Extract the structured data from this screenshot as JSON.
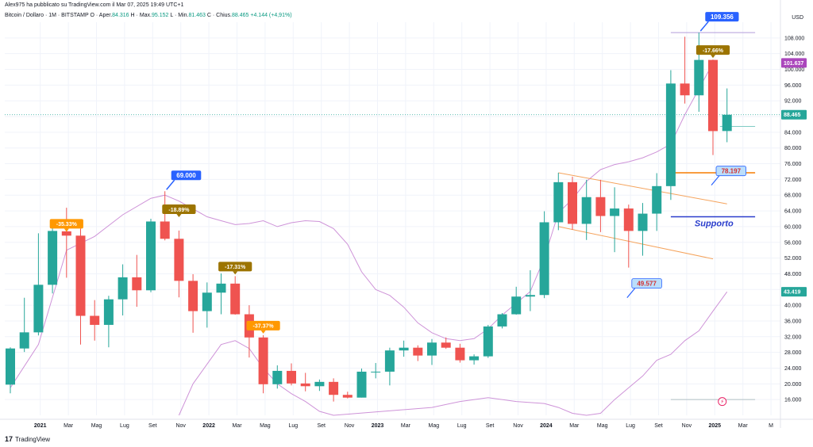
{
  "header": {
    "text": "Alex975 ha pubblicato su TradingView.com il Mar 07, 2025 19:49 UTC+1"
  },
  "ohlc_line": {
    "symbol": "Bitcoin / Dollaro · 1M · BITSTAMP",
    "status": "O",
    "open_label": "Aper.",
    "open": "84.316",
    "high_label": "H",
    "max_label": "Max.",
    "high": "95.152",
    "low_label": "L",
    "min_label": "Min.",
    "low": "81.463",
    "close_label": "C",
    "chius_label": "Chius.",
    "close": "88.465",
    "change": "+4.144 (+4,91%)"
  },
  "currency": "USD",
  "logo_text": "TradingView",
  "colors": {
    "up": "#26a69a",
    "down": "#ef5350",
    "envelope": "#ce93d8",
    "channel": "#f5a35c",
    "support": "#2a3dcc",
    "label_blue": "#2962ff",
    "label_orange": "#ff9800",
    "label_olive": "#9c7400",
    "axis_text": "#131722",
    "price_tag": "#26a69a",
    "purple_tag": "#ab47bc"
  },
  "chart_data": {
    "type": "candlestick",
    "y_axis": {
      "min": 12000,
      "max": 112000,
      "ticks": [
        "16.000",
        "20.000",
        "24.000",
        "28.000",
        "32.000",
        "36.000",
        "40.000",
        "44.000",
        "48.000",
        "52.000",
        "56.000",
        "60.000",
        "64.000",
        "68.000",
        "72.000",
        "76.000",
        "80.000",
        "84.000",
        "88.000",
        "92.000",
        "96.000",
        "100.000",
        "104.000",
        "108.000"
      ],
      "tick_values": [
        16000,
        20000,
        24000,
        28000,
        32000,
        36000,
        40000,
        44000,
        48000,
        52000,
        56000,
        60000,
        64000,
        68000,
        72000,
        76000,
        80000,
        84000,
        88000,
        92000,
        96000,
        100000,
        104000,
        108000
      ]
    },
    "x_axis": {
      "labels": [
        {
          "i": 1,
          "t": "2021"
        },
        {
          "i": 3,
          "t": "Mar"
        },
        {
          "i": 5,
          "t": "Mag"
        },
        {
          "i": 7,
          "t": "Lug"
        },
        {
          "i": 9,
          "t": "Set"
        },
        {
          "i": 11,
          "t": "Nov"
        },
        {
          "i": 13,
          "t": "2022"
        },
        {
          "i": 15,
          "t": "Mar"
        },
        {
          "i": 17,
          "t": "Mag"
        },
        {
          "i": 19,
          "t": "Lug"
        },
        {
          "i": 21,
          "t": "Set"
        },
        {
          "i": 23,
          "t": "Nov"
        },
        {
          "i": 25,
          "t": "2023"
        },
        {
          "i": 27,
          "t": "Mar"
        },
        {
          "i": 29,
          "t": "Mag"
        },
        {
          "i": 31,
          "t": "Lug"
        },
        {
          "i": 33,
          "t": "Set"
        },
        {
          "i": 35,
          "t": "Nov"
        },
        {
          "i": 37,
          "t": "2024"
        },
        {
          "i": 39,
          "t": "Mar"
        },
        {
          "i": 41,
          "t": "Mag"
        },
        {
          "i": 43,
          "t": "Lug"
        },
        {
          "i": 45,
          "t": "Set"
        },
        {
          "i": 47,
          "t": "Nov"
        },
        {
          "i": 49,
          "t": "2025"
        },
        {
          "i": 51,
          "t": "Mar"
        },
        {
          "i": 53,
          "t": "M"
        }
      ]
    },
    "candles": [
      {
        "o": 19800,
        "h": 29300,
        "l": 17600,
        "c": 29000
      },
      {
        "o": 29000,
        "h": 41900,
        "l": 28100,
        "c": 33100
      },
      {
        "o": 33100,
        "h": 58300,
        "l": 32300,
        "c": 45200
      },
      {
        "o": 45200,
        "h": 61700,
        "l": 43000,
        "c": 58900
      },
      {
        "o": 58800,
        "h": 64800,
        "l": 47000,
        "c": 57700
      },
      {
        "o": 57700,
        "h": 59500,
        "l": 30000,
        "c": 37300
      },
      {
        "o": 37300,
        "h": 41300,
        "l": 31000,
        "c": 35000
      },
      {
        "o": 35000,
        "h": 42400,
        "l": 29300,
        "c": 41500
      },
      {
        "o": 41500,
        "h": 50400,
        "l": 37400,
        "c": 47100
      },
      {
        "o": 47100,
        "h": 52800,
        "l": 39600,
        "c": 43800
      },
      {
        "o": 43800,
        "h": 62000,
        "l": 43300,
        "c": 61300
      },
      {
        "o": 61300,
        "h": 69000,
        "l": 56500,
        "c": 56900
      },
      {
        "o": 56900,
        "h": 59000,
        "l": 42000,
        "c": 46200
      },
      {
        "o": 46200,
        "h": 47900,
        "l": 33000,
        "c": 38500
      },
      {
        "o": 38500,
        "h": 45800,
        "l": 34300,
        "c": 43200
      },
      {
        "o": 43200,
        "h": 48100,
        "l": 37700,
        "c": 45500
      },
      {
        "o": 45500,
        "h": 47400,
        "l": 37600,
        "c": 37700
      },
      {
        "o": 37700,
        "h": 40000,
        "l": 26700,
        "c": 31800
      },
      {
        "o": 31800,
        "h": 32400,
        "l": 17600,
        "c": 19900
      },
      {
        "o": 19900,
        "h": 24700,
        "l": 18800,
        "c": 23300
      },
      {
        "o": 23300,
        "h": 25200,
        "l": 19600,
        "c": 20100
      },
      {
        "o": 20100,
        "h": 22800,
        "l": 18100,
        "c": 19400
      },
      {
        "o": 19400,
        "h": 21100,
        "l": 18200,
        "c": 20500
      },
      {
        "o": 20500,
        "h": 21400,
        "l": 15500,
        "c": 17200
      },
      {
        "o": 17200,
        "h": 18000,
        "l": 16300,
        "c": 16500
      },
      {
        "o": 16500,
        "h": 23900,
        "l": 16500,
        "c": 23100
      },
      {
        "o": 23100,
        "h": 25300,
        "l": 21400,
        "c": 23100
      },
      {
        "o": 23100,
        "h": 29200,
        "l": 19600,
        "c": 28500
      },
      {
        "o": 28500,
        "h": 31000,
        "l": 26900,
        "c": 29200
      },
      {
        "o": 29200,
        "h": 29800,
        "l": 25800,
        "c": 27200
      },
      {
        "o": 27200,
        "h": 31400,
        "l": 24800,
        "c": 30500
      },
      {
        "o": 30500,
        "h": 31800,
        "l": 28900,
        "c": 29200
      },
      {
        "o": 29200,
        "h": 30200,
        "l": 25400,
        "c": 26000
      },
      {
        "o": 26000,
        "h": 27500,
        "l": 24900,
        "c": 27000
      },
      {
        "o": 27000,
        "h": 35000,
        "l": 26600,
        "c": 34600
      },
      {
        "o": 34600,
        "h": 38000,
        "l": 34100,
        "c": 37700
      },
      {
        "o": 37700,
        "h": 44700,
        "l": 37600,
        "c": 42200
      },
      {
        "o": 42200,
        "h": 48900,
        "l": 38500,
        "c": 42600
      },
      {
        "o": 42600,
        "h": 63900,
        "l": 41800,
        "c": 61100
      },
      {
        "o": 61100,
        "h": 73700,
        "l": 59100,
        "c": 71300
      },
      {
        "o": 71300,
        "h": 72700,
        "l": 59200,
        "c": 60700
      },
      {
        "o": 60700,
        "h": 71900,
        "l": 56600,
        "c": 67500
      },
      {
        "o": 67500,
        "h": 71900,
        "l": 58600,
        "c": 62700
      },
      {
        "o": 62700,
        "h": 70000,
        "l": 53500,
        "c": 64600
      },
      {
        "o": 64600,
        "h": 65600,
        "l": 49577,
        "c": 58900
      },
      {
        "o": 58900,
        "h": 66000,
        "l": 52600,
        "c": 63300
      },
      {
        "o": 63300,
        "h": 73600,
        "l": 58900,
        "c": 70300
      },
      {
        "o": 70300,
        "h": 99800,
        "l": 66800,
        "c": 96400
      },
      {
        "o": 96400,
        "h": 108300,
        "l": 91300,
        "c": 93400
      },
      {
        "o": 93400,
        "h": 109356,
        "l": 89200,
        "c": 102400
      },
      {
        "o": 102400,
        "h": 102500,
        "l": 78197,
        "c": 84300
      },
      {
        "o": 84316,
        "h": 95152,
        "l": 81463,
        "c": 88465
      }
    ],
    "upper_band": [
      [
        0,
        19000
      ],
      [
        2,
        30000
      ],
      [
        4,
        54000
      ],
      [
        6,
        57500
      ],
      [
        8,
        63000
      ],
      [
        10,
        67200
      ],
      [
        11,
        68000
      ],
      [
        12,
        66500
      ],
      [
        13,
        64500
      ],
      [
        14,
        62500
      ],
      [
        15,
        61500
      ],
      [
        16,
        60500
      ],
      [
        17,
        60800
      ],
      [
        18,
        61500
      ],
      [
        19,
        60000
      ],
      [
        20,
        61000
      ],
      [
        21,
        61500
      ],
      [
        22,
        61300
      ],
      [
        23,
        59500
      ],
      [
        24,
        55500
      ],
      [
        25,
        48500
      ],
      [
        26,
        44000
      ],
      [
        27,
        42500
      ],
      [
        28,
        39500
      ],
      [
        29,
        35500
      ],
      [
        30,
        33000
      ],
      [
        31,
        31500
      ],
      [
        32,
        31000
      ],
      [
        33,
        31500
      ],
      [
        34,
        34000
      ],
      [
        35,
        37500
      ],
      [
        36,
        40500
      ],
      [
        37,
        43500
      ],
      [
        38,
        52000
      ],
      [
        39,
        63500
      ],
      [
        40,
        67000
      ],
      [
        41,
        71500
      ],
      [
        42,
        74500
      ],
      [
        43,
        75800
      ],
      [
        44,
        76500
      ],
      [
        45,
        77500
      ],
      [
        46,
        79000
      ],
      [
        47,
        81000
      ],
      [
        48,
        88500
      ],
      [
        49,
        95000
      ],
      [
        50,
        101637
      ]
    ],
    "lower_band": [
      [
        12,
        12000
      ],
      [
        13,
        20000
      ],
      [
        15,
        30000
      ],
      [
        16,
        31000
      ],
      [
        17,
        29000
      ],
      [
        18,
        24000
      ],
      [
        19,
        20000
      ],
      [
        20,
        17500
      ],
      [
        21,
        15500
      ],
      [
        22,
        13000
      ],
      [
        23,
        12000
      ],
      [
        30,
        14000
      ],
      [
        32,
        15500
      ],
      [
        34,
        16500
      ],
      [
        36,
        15500
      ],
      [
        38,
        15000
      ],
      [
        39,
        14000
      ],
      [
        40,
        12500
      ],
      [
        41,
        12000
      ],
      [
        42,
        12500
      ],
      [
        43,
        16000
      ],
      [
        44,
        19000
      ],
      [
        45,
        22000
      ],
      [
        46,
        26000
      ],
      [
        47,
        27500
      ],
      [
        48,
        31000
      ],
      [
        49,
        33500
      ],
      [
        50,
        38500
      ],
      [
        51,
        43419
      ]
    ],
    "channel_upper": [
      [
        39,
        73700
      ],
      [
        51,
        65800
      ]
    ],
    "channel_lower": [
      [
        39,
        60000
      ],
      [
        50,
        51800
      ]
    ],
    "resistance_line": {
      "from": 47,
      "to": 53,
      "y": 73700
    },
    "support_line": {
      "from": 47,
      "to": 53,
      "y": 62500,
      "label": "Supporto"
    },
    "top_line": {
      "from": 47,
      "to": 53,
      "y": 109356
    },
    "mid_line": {
      "from": 50.5,
      "to": 53,
      "y": 85500
    },
    "bottom_line": {
      "from": 47,
      "to": 53,
      "y": 16000
    },
    "labels": [
      {
        "i": 11,
        "y": 69000,
        "text": "69.000",
        "kind": "blue",
        "dir": "up"
      },
      {
        "i": 49,
        "y": 109356,
        "text": "109.356",
        "kind": "blue",
        "dir": "up"
      },
      {
        "i": 4,
        "y": 58300,
        "text": "-35.33%",
        "kind": "orange",
        "dir": "down"
      },
      {
        "i": 12,
        "y": 62000,
        "text": "-18.89%",
        "kind": "olive",
        "dir": "down"
      },
      {
        "i": 16,
        "y": 47400,
        "text": "-17.31%",
        "kind": "olive",
        "dir": "down"
      },
      {
        "i": 18,
        "y": 32400,
        "text": "-37.37%",
        "kind": "orange",
        "dir": "down"
      },
      {
        "i": 50,
        "y": 102500,
        "text": "-17.66%",
        "kind": "olive",
        "dir": "down"
      },
      {
        "i": 44,
        "y": 49577,
        "text": "49.577",
        "kind": "low",
        "dir": "low"
      },
      {
        "i": 50,
        "y": 78197,
        "text": "78.197",
        "kind": "low",
        "dir": "low"
      }
    ],
    "price_tags": [
      {
        "y": 101637,
        "text": "101.637",
        "kind": "purple"
      },
      {
        "y": 88465,
        "text": "88.465",
        "kind": "green"
      },
      {
        "y": 43419,
        "text": "43.419",
        "kind": "green"
      }
    ],
    "current_price": 88465
  }
}
